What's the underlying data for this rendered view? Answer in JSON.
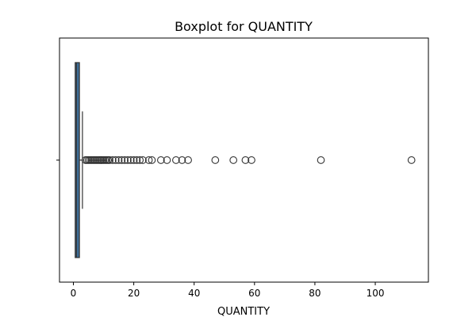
{
  "chart_data": {
    "type": "boxplot",
    "title": "Boxplot for QUANTITY",
    "xlabel": "QUANTITY",
    "ylabel": "",
    "xlim": [
      -4.6,
      117.6
    ],
    "xticks": [
      0,
      20,
      40,
      60,
      80,
      100
    ],
    "orientation": "horizontal",
    "grid": false,
    "box": {
      "min": 1,
      "q1": 1,
      "median": 1,
      "q3": 2,
      "whisker_low": 1,
      "whisker_high": 3,
      "fill_color": "#3d6d96",
      "edge_color": "#333333"
    },
    "outliers": [
      4,
      4.5,
      5,
      5.5,
      6,
      6.5,
      7,
      7.5,
      8,
      8.5,
      9,
      9.5,
      10,
      10.5,
      11,
      11.5,
      12,
      13,
      14,
      15,
      16,
      17,
      18,
      19,
      20,
      21,
      22,
      23,
      25,
      26,
      29,
      31,
      34,
      36,
      38,
      47,
      53,
      57,
      59,
      82,
      112
    ]
  }
}
